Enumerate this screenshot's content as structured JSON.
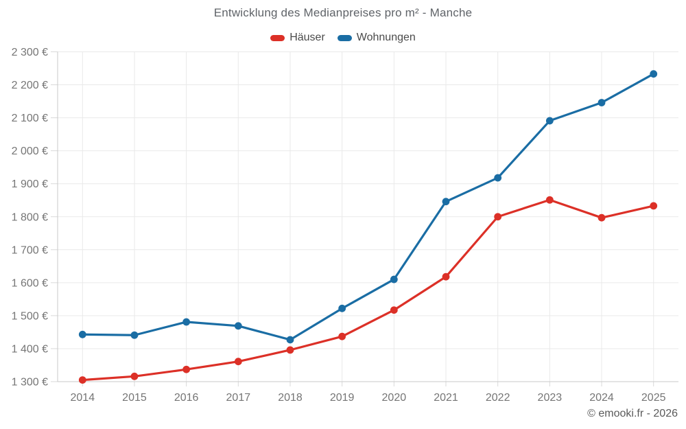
{
  "footer": {
    "copyright": "© emooki.fr - 2026"
  },
  "chart_data": {
    "type": "line",
    "title": "Entwicklung des Medianpreises pro m² - Manche",
    "x": [
      2014,
      2015,
      2016,
      2017,
      2018,
      2019,
      2020,
      2021,
      2022,
      2023,
      2024,
      2025
    ],
    "x_tick_labels": [
      "2014",
      "2015",
      "2016",
      "2017",
      "2018",
      "2019",
      "2020",
      "2021",
      "2022",
      "2023",
      "2024",
      "2025"
    ],
    "series": [
      {
        "name": "Häuser",
        "color": "#dc3027",
        "values": [
          1305,
          1316,
          1337,
          1361,
          1396,
          1437,
          1517,
          1618,
          1800,
          1851,
          1797,
          1833
        ]
      },
      {
        "name": "Wohnungen",
        "color": "#1a6da4",
        "values": [
          1443,
          1441,
          1481,
          1469,
          1427,
          1522,
          1610,
          1846,
          1918,
          2091,
          2146,
          2233
        ]
      }
    ],
    "ylim": [
      1300,
      2300
    ],
    "ytick_step": 100,
    "y_tick_labels": [
      "1 300 €",
      "1 400 €",
      "1 500 €",
      "1 600 €",
      "1 700 €",
      "1 800 €",
      "1 900 €",
      "2 000 €",
      "2 100 €",
      "2 200 €",
      "2 300 €"
    ],
    "y_unit": "€",
    "grid": true,
    "legend_position": "top",
    "colors": {
      "grid": "#e9e9e9",
      "axis": "#c9c9c9",
      "tick": "#d9d9d9",
      "tick_label": "#757575"
    }
  }
}
